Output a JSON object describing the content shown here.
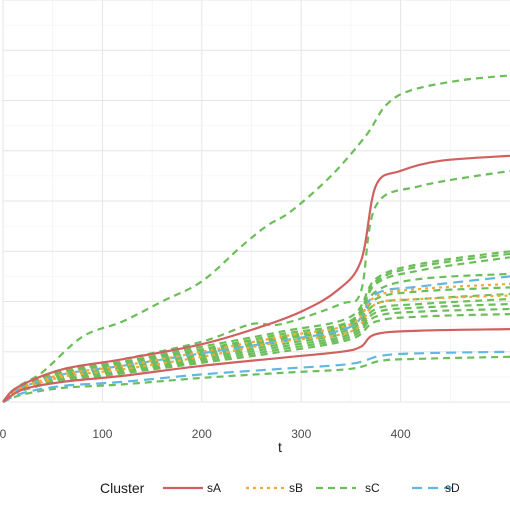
{
  "chart_data": {
    "type": "line",
    "xlabel": "t",
    "ylabel": "",
    "title": "",
    "xlim": [
      0,
      510
    ],
    "ylim": [
      0,
      8
    ],
    "x_ticks": [
      0,
      100,
      200,
      300,
      400
    ],
    "x_tick_labels": [
      "0",
      "100",
      "200",
      "300",
      "400"
    ],
    "y_gridlines": [
      0,
      1,
      2,
      3,
      4,
      5,
      6,
      7,
      8
    ],
    "grid": true,
    "legend": {
      "title": "Cluster",
      "position": "bottom",
      "entries": [
        {
          "name": "sA",
          "color": "#D16060",
          "dash": "solid"
        },
        {
          "name": "sB",
          "color": "#F2A93B",
          "dash": "dotted"
        },
        {
          "name": "sC",
          "color": "#6CBE5A",
          "dash": "dashed"
        },
        {
          "name": "sD",
          "color": "#63B8E0",
          "dash": "longdash"
        }
      ]
    },
    "series": [
      {
        "cluster": "sA",
        "values": [
          [
            0,
            0
          ],
          [
            15,
            0.3
          ],
          [
            60,
            0.65
          ],
          [
            120,
            0.85
          ],
          [
            200,
            1.15
          ],
          [
            260,
            1.5
          ],
          [
            300,
            1.8
          ],
          [
            335,
            2.2
          ],
          [
            360,
            2.8
          ],
          [
            375,
            4.3
          ],
          [
            400,
            4.6
          ],
          [
            440,
            4.8
          ],
          [
            510,
            4.9
          ]
        ]
      },
      {
        "cluster": "sA",
        "values": [
          [
            0,
            0
          ],
          [
            20,
            0.25
          ],
          [
            60,
            0.4
          ],
          [
            120,
            0.52
          ],
          [
            200,
            0.72
          ],
          [
            280,
            0.88
          ],
          [
            340,
            1.0
          ],
          [
            360,
            1.1
          ],
          [
            375,
            1.35
          ],
          [
            420,
            1.42
          ],
          [
            510,
            1.45
          ]
        ]
      },
      {
        "cluster": "sB",
        "values": [
          [
            0,
            0
          ],
          [
            15,
            0.25
          ],
          [
            60,
            0.55
          ],
          [
            120,
            0.72
          ],
          [
            200,
            1.0
          ],
          [
            280,
            1.3
          ],
          [
            350,
            1.55
          ],
          [
            375,
            2.1
          ],
          [
            420,
            2.25
          ],
          [
            510,
            2.35
          ]
        ]
      },
      {
        "cluster": "sB",
        "values": [
          [
            0,
            0
          ],
          [
            15,
            0.22
          ],
          [
            60,
            0.5
          ],
          [
            120,
            0.65
          ],
          [
            200,
            0.9
          ],
          [
            280,
            1.2
          ],
          [
            350,
            1.4
          ],
          [
            375,
            1.95
          ],
          [
            420,
            2.05
          ],
          [
            510,
            2.12
          ]
        ]
      },
      {
        "cluster": "sC",
        "values": [
          [
            0,
            0
          ],
          [
            15,
            0.3
          ],
          [
            40,
            0.6
          ],
          [
            80,
            1.3
          ],
          [
            120,
            1.6
          ],
          [
            160,
            2.0
          ],
          [
            200,
            2.4
          ],
          [
            240,
            3.1
          ],
          [
            265,
            3.5
          ],
          [
            290,
            3.8
          ],
          [
            330,
            4.5
          ],
          [
            365,
            5.3
          ],
          [
            385,
            5.9
          ],
          [
            410,
            6.2
          ],
          [
            460,
            6.4
          ],
          [
            510,
            6.5
          ]
        ]
      },
      {
        "cluster": "sC",
        "values": [
          [
            0,
            0
          ],
          [
            15,
            0.3
          ],
          [
            60,
            0.65
          ],
          [
            120,
            0.85
          ],
          [
            200,
            1.2
          ],
          [
            250,
            1.55
          ],
          [
            280,
            1.55
          ],
          [
            340,
            1.95
          ],
          [
            360,
            2.2
          ],
          [
            375,
            3.9
          ],
          [
            420,
            4.3
          ],
          [
            510,
            4.6
          ]
        ]
      },
      {
        "cluster": "sC",
        "values": [
          [
            0,
            0
          ],
          [
            15,
            0.28
          ],
          [
            60,
            0.62
          ],
          [
            120,
            0.8
          ],
          [
            200,
            1.1
          ],
          [
            280,
            1.4
          ],
          [
            350,
            1.7
          ],
          [
            375,
            2.45
          ],
          [
            420,
            2.75
          ],
          [
            510,
            3.0
          ]
        ]
      },
      {
        "cluster": "sC",
        "values": [
          [
            0,
            0
          ],
          [
            15,
            0.27
          ],
          [
            60,
            0.6
          ],
          [
            120,
            0.78
          ],
          [
            200,
            1.05
          ],
          [
            280,
            1.35
          ],
          [
            350,
            1.62
          ],
          [
            375,
            2.4
          ],
          [
            420,
            2.7
          ],
          [
            510,
            2.95
          ]
        ]
      },
      {
        "cluster": "sC",
        "values": [
          [
            0,
            0
          ],
          [
            15,
            0.26
          ],
          [
            60,
            0.58
          ],
          [
            120,
            0.75
          ],
          [
            200,
            1.02
          ],
          [
            280,
            1.3
          ],
          [
            350,
            1.58
          ],
          [
            375,
            2.35
          ],
          [
            420,
            2.62
          ],
          [
            510,
            2.88
          ]
        ]
      },
      {
        "cluster": "sC",
        "values": [
          [
            0,
            0
          ],
          [
            15,
            0.26
          ],
          [
            60,
            0.57
          ],
          [
            120,
            0.73
          ],
          [
            200,
            1.0
          ],
          [
            280,
            1.28
          ],
          [
            350,
            1.55
          ],
          [
            375,
            2.2
          ],
          [
            420,
            2.45
          ],
          [
            510,
            2.55
          ]
        ]
      },
      {
        "cluster": "sC",
        "values": [
          [
            0,
            0
          ],
          [
            15,
            0.25
          ],
          [
            60,
            0.55
          ],
          [
            120,
            0.7
          ],
          [
            200,
            0.97
          ],
          [
            280,
            1.25
          ],
          [
            350,
            1.5
          ],
          [
            375,
            2.05
          ],
          [
            420,
            2.2
          ],
          [
            510,
            2.28
          ]
        ]
      },
      {
        "cluster": "sC",
        "values": [
          [
            0,
            0
          ],
          [
            15,
            0.24
          ],
          [
            60,
            0.52
          ],
          [
            120,
            0.68
          ],
          [
            200,
            0.94
          ],
          [
            280,
            1.2
          ],
          [
            350,
            1.45
          ],
          [
            375,
            1.95
          ],
          [
            420,
            2.05
          ],
          [
            510,
            2.15
          ]
        ]
      },
      {
        "cluster": "sC",
        "values": [
          [
            0,
            0
          ],
          [
            15,
            0.23
          ],
          [
            60,
            0.5
          ],
          [
            120,
            0.65
          ],
          [
            200,
            0.9
          ],
          [
            280,
            1.15
          ],
          [
            350,
            1.4
          ],
          [
            375,
            1.85
          ],
          [
            420,
            1.95
          ],
          [
            510,
            2.05
          ]
        ]
      },
      {
        "cluster": "sC",
        "values": [
          [
            0,
            0
          ],
          [
            15,
            0.22
          ],
          [
            60,
            0.48
          ],
          [
            120,
            0.62
          ],
          [
            200,
            0.86
          ],
          [
            280,
            1.1
          ],
          [
            350,
            1.35
          ],
          [
            375,
            1.78
          ],
          [
            420,
            1.88
          ],
          [
            510,
            1.95
          ]
        ]
      },
      {
        "cluster": "sC",
        "values": [
          [
            0,
            0
          ],
          [
            15,
            0.21
          ],
          [
            60,
            0.45
          ],
          [
            120,
            0.6
          ],
          [
            200,
            0.82
          ],
          [
            280,
            1.05
          ],
          [
            350,
            1.3
          ],
          [
            375,
            1.7
          ],
          [
            420,
            1.8
          ],
          [
            510,
            1.85
          ]
        ]
      },
      {
        "cluster": "sC",
        "values": [
          [
            0,
            0
          ],
          [
            15,
            0.2
          ],
          [
            60,
            0.42
          ],
          [
            120,
            0.57
          ],
          [
            200,
            0.78
          ],
          [
            280,
            1.0
          ],
          [
            350,
            1.25
          ],
          [
            375,
            1.6
          ],
          [
            420,
            1.7
          ],
          [
            510,
            1.75
          ]
        ]
      },
      {
        "cluster": "sC",
        "values": [
          [
            0,
            0
          ],
          [
            20,
            0.15
          ],
          [
            60,
            0.28
          ],
          [
            120,
            0.35
          ],
          [
            200,
            0.48
          ],
          [
            280,
            0.58
          ],
          [
            350,
            0.66
          ],
          [
            380,
            0.82
          ],
          [
            420,
            0.86
          ],
          [
            510,
            0.9
          ]
        ]
      },
      {
        "cluster": "sD",
        "values": [
          [
            0,
            0
          ],
          [
            15,
            0.25
          ],
          [
            60,
            0.55
          ],
          [
            120,
            0.72
          ],
          [
            200,
            0.97
          ],
          [
            280,
            1.22
          ],
          [
            350,
            1.5
          ],
          [
            375,
            2.15
          ],
          [
            420,
            2.3
          ],
          [
            510,
            2.5
          ]
        ]
      },
      {
        "cluster": "sD",
        "values": [
          [
            0,
            0
          ],
          [
            20,
            0.18
          ],
          [
            60,
            0.32
          ],
          [
            120,
            0.4
          ],
          [
            200,
            0.55
          ],
          [
            280,
            0.66
          ],
          [
            350,
            0.76
          ],
          [
            380,
            0.92
          ],
          [
            420,
            0.97
          ],
          [
            510,
            1.0
          ]
        ]
      }
    ]
  }
}
